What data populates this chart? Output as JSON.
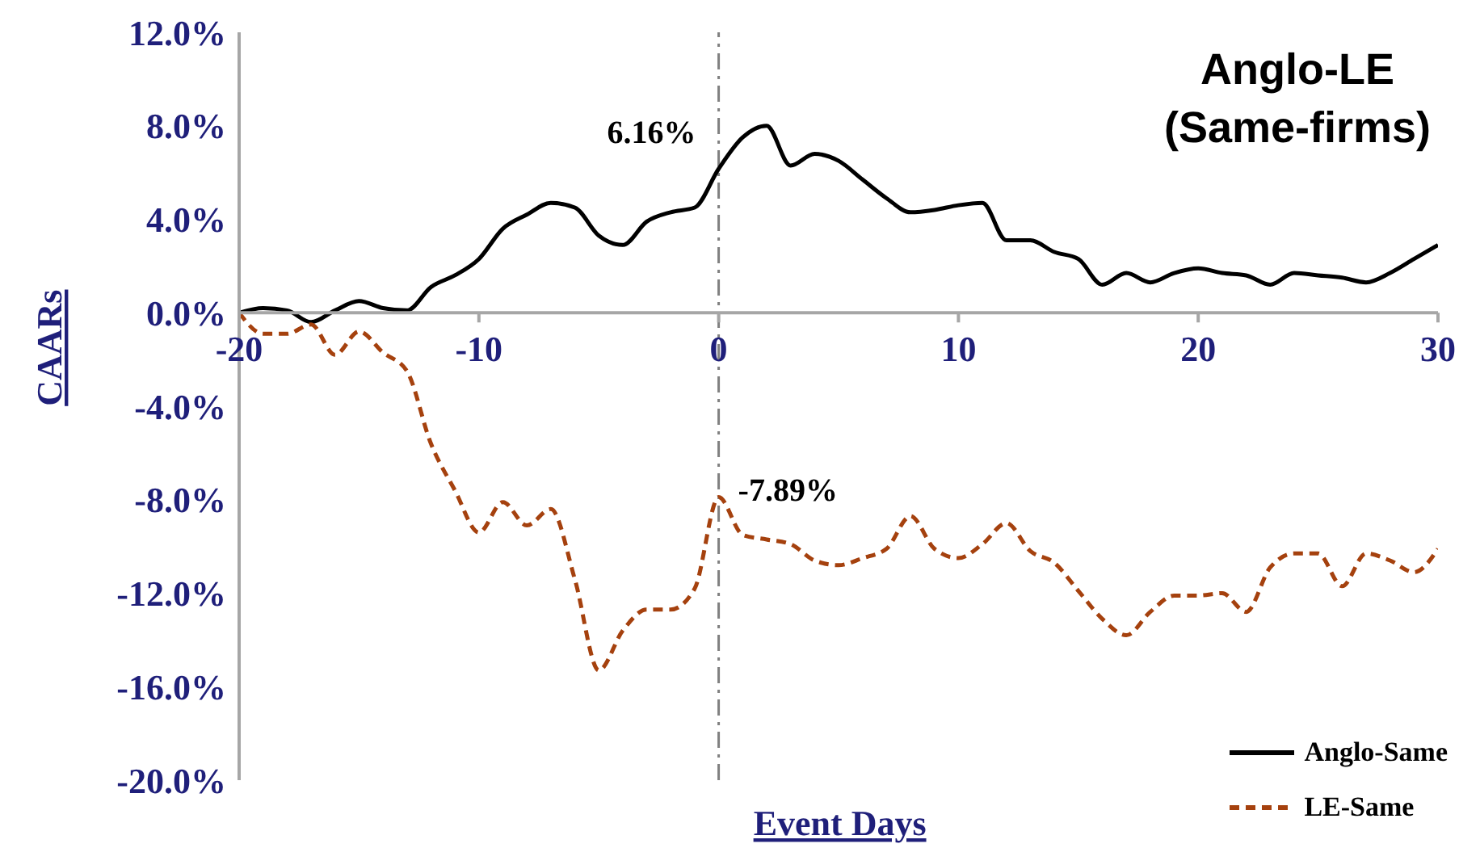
{
  "chart_data": {
    "type": "line",
    "title": "Anglo-LE",
    "subtitle": "(Same-firms)",
    "xlabel": "Event Days",
    "ylabel": "CAARs",
    "x": [
      -20,
      -19,
      -18,
      -17,
      -16,
      -15,
      -14,
      -13,
      -12,
      -11,
      -10,
      -9,
      -8,
      -7,
      -6,
      -5,
      -4,
      -3,
      -2,
      -1,
      0,
      1,
      2,
      3,
      4,
      5,
      6,
      7,
      8,
      9,
      10,
      11,
      12,
      13,
      14,
      15,
      16,
      17,
      18,
      19,
      20,
      21,
      22,
      23,
      24,
      25,
      26,
      27,
      28,
      29,
      30
    ],
    "series": [
      {
        "name": "Anglo-Same",
        "color": "#000000",
        "line_style": "solid",
        "values": [
          0,
          0.2,
          0.1,
          -0.4,
          0.1,
          0.5,
          0.2,
          0.1,
          1.1,
          1.6,
          2.3,
          3.6,
          4.2,
          4.7,
          4.5,
          3.3,
          2.9,
          3.9,
          4.3,
          4.5,
          6.16,
          7.5,
          8.0,
          6.3,
          6.8,
          6.5,
          5.7,
          4.9,
          4.3,
          4.4,
          4.6,
          4.7,
          3.1,
          3.1,
          2.6,
          2.3,
          1.2,
          1.7,
          1.3,
          1.7,
          1.9,
          1.7,
          1.6,
          1.2,
          1.7,
          1.6,
          1.5,
          1.3,
          1.7,
          2.3,
          2.9
        ]
      },
      {
        "name": "LE-Same",
        "color": "#a5410e",
        "line_style": "dashed",
        "values": [
          0,
          -0.9,
          -0.9,
          -0.5,
          -1.8,
          -0.8,
          -1.7,
          -2.5,
          -5.6,
          -7.6,
          -9.4,
          -8.1,
          -9.1,
          -8.4,
          -11.4,
          -15.3,
          -13.6,
          -12.7,
          -12.7,
          -11.8,
          -7.89,
          -9.5,
          -9.7,
          -9.9,
          -10.6,
          -10.8,
          -10.5,
          -10.1,
          -8.7,
          -10.1,
          -10.5,
          -9.9,
          -9.0,
          -10.2,
          -10.7,
          -11.9,
          -13.1,
          -13.8,
          -12.8,
          -12.1,
          -12.1,
          -12.0,
          -12.8,
          -10.9,
          -10.3,
          -10.3,
          -11.7,
          -10.3,
          -10.6,
          -11.1,
          -10.1
        ]
      }
    ],
    "xlim": [
      -20,
      30
    ],
    "xticks": [
      -20,
      -10,
      0,
      10,
      20,
      30
    ],
    "ylim": [
      -20,
      12
    ],
    "yticks": [
      {
        "value": -20,
        "label": "-20.0%"
      },
      {
        "value": -16,
        "label": "-16.0%"
      },
      {
        "value": -12,
        "label": "-12.0%"
      },
      {
        "value": -8,
        "label": "-8.0%"
      },
      {
        "value": -4,
        "label": "-4.0%"
      },
      {
        "value": 0,
        "label": "0.0%"
      },
      {
        "value": 4,
        "label": "4.0%"
      },
      {
        "value": 8,
        "label": "8.0%"
      },
      {
        "value": 12,
        "label": "12.0%"
      }
    ],
    "ref_lines": [
      {
        "axis": "x",
        "value": 0,
        "color": "#808080",
        "line_style": "dashed"
      }
    ],
    "annotations": [
      {
        "text": "6.16%",
        "x": 0,
        "y": 6.16
      },
      {
        "text": "-7.89%",
        "x": 0,
        "y": -7.89
      }
    ],
    "grid": false,
    "legend": "bottom right",
    "marker": "none"
  }
}
